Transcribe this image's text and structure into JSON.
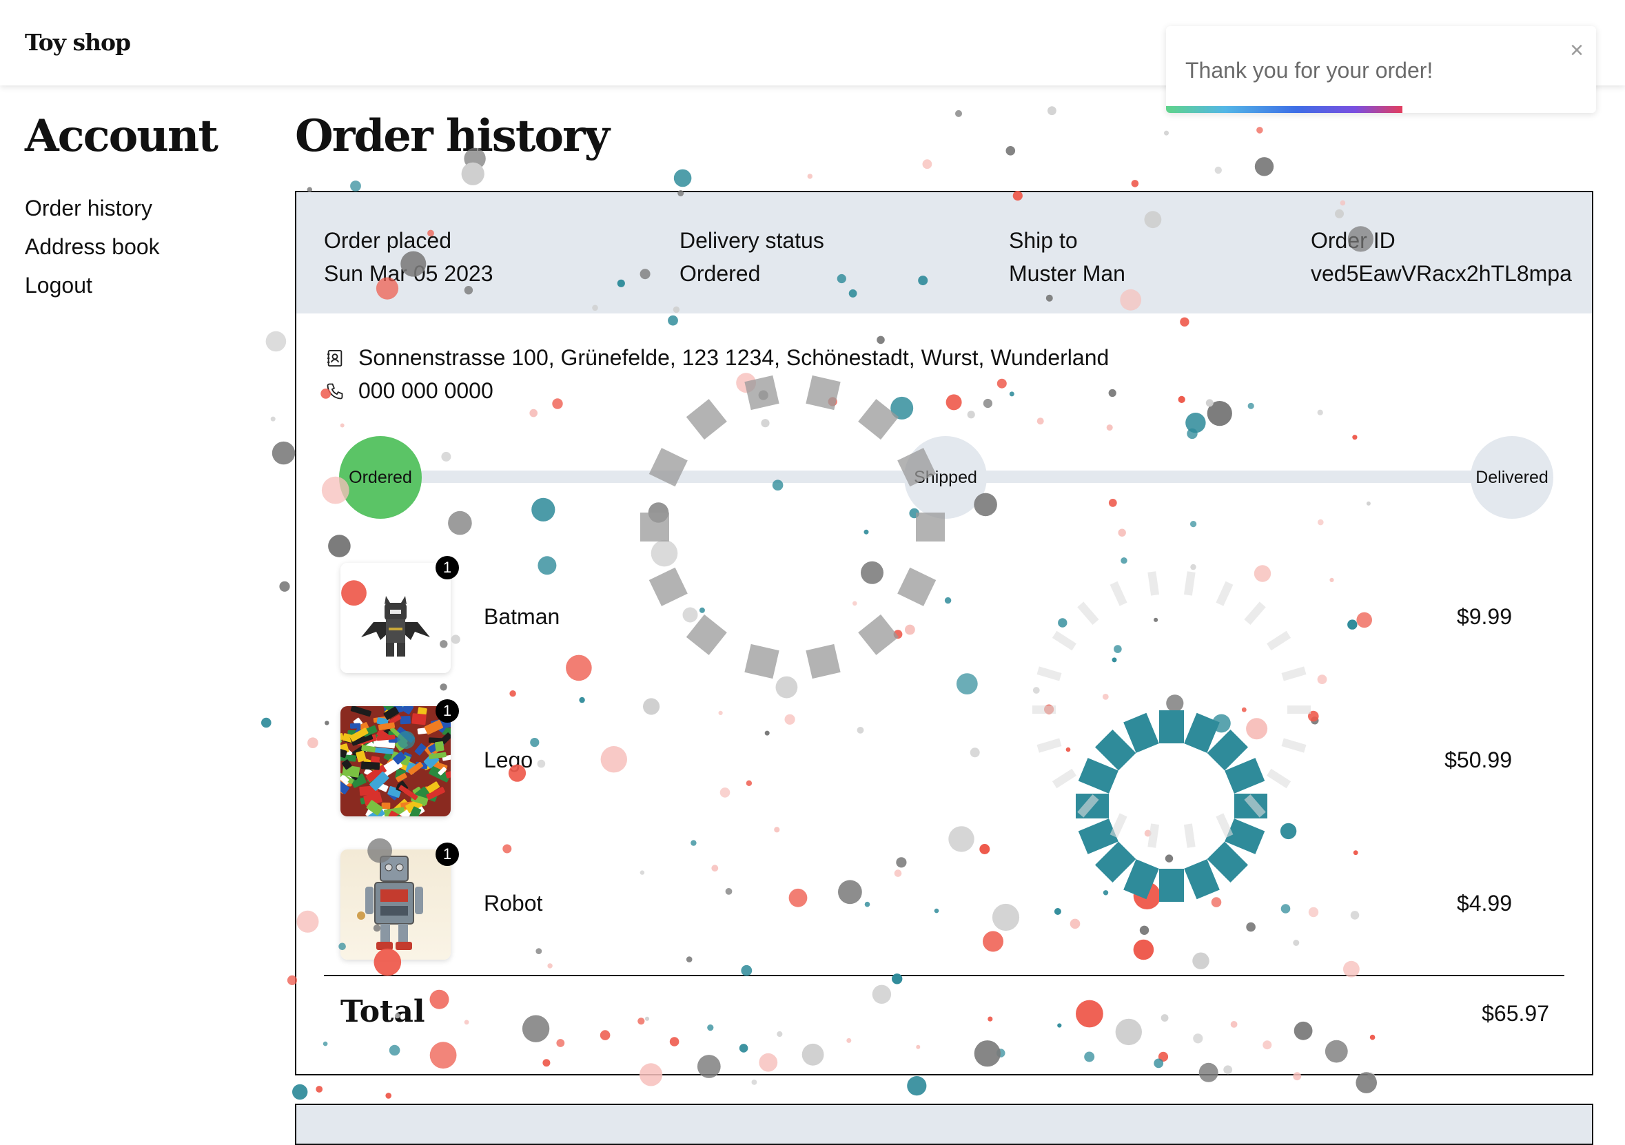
{
  "header": {
    "brand": "Toy shop"
  },
  "toast": {
    "message": "Thank you for your order!",
    "close_label": "×",
    "progress_fraction": 0.55
  },
  "sidebar": {
    "title": "Account",
    "items": [
      {
        "label": "Order history"
      },
      {
        "label": "Address book"
      },
      {
        "label": "Logout"
      }
    ]
  },
  "main": {
    "title": "Order history"
  },
  "order": {
    "placed_label": "Order placed",
    "placed_value": "Sun Mar 05 2023",
    "status_label": "Delivery status",
    "status_value": "Ordered",
    "ship_label": "Ship to",
    "ship_value": "Muster Man",
    "id_label": "Order ID",
    "id_value": "ved5EawVRacx2hTL8mpa",
    "address": "Sonnenstrasse 100, Grünefelde, 123 1234, Schönestadt, Wurst, Wunderland",
    "phone": "000 000 0000",
    "steps": [
      {
        "label": "Ordered",
        "state": "done"
      },
      {
        "label": "Shipped",
        "state": "pending"
      },
      {
        "label": "Delivered",
        "state": "pending"
      }
    ],
    "items": [
      {
        "name": "Batman",
        "qty": "1",
        "price": "$9.99",
        "image_icon": "batman-figure"
      },
      {
        "name": "Lego",
        "qty": "1",
        "price": "$50.99",
        "image_icon": "lego-bricks"
      },
      {
        "name": "Robot",
        "qty": "1",
        "price": "$4.99",
        "image_icon": "tin-robot"
      }
    ],
    "total_label": "Total",
    "total_value": "$65.97"
  },
  "colors": {
    "step_done": "#5bc466",
    "step_pending": "#e3e8ee",
    "confetti_teal": "#2f8b9a",
    "confetti_red": "#ee5a4c",
    "confetti_grey": "#7a7a7a"
  }
}
